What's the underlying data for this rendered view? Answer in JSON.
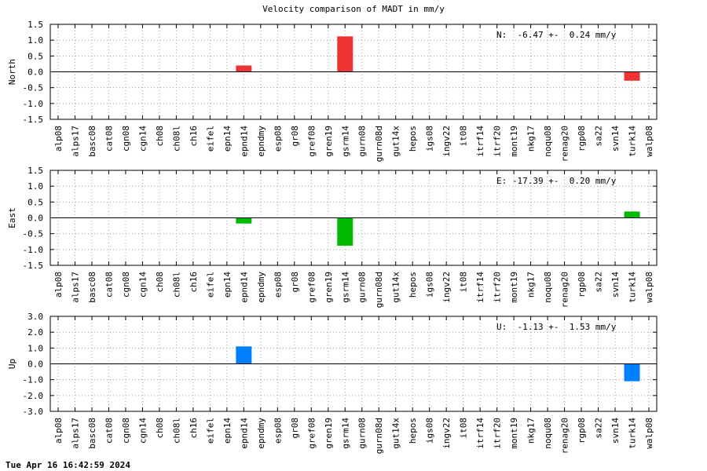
{
  "title": "Velocity comparison of MADT in mm/y",
  "footer_timestamp": "Tue Apr 16 16:42:59 2024",
  "chart_data": [
    {
      "type": "bar",
      "ylabel": "North",
      "annotation": "N:  -6.47 +-  0.24 mm/y",
      "color": "#ee3333",
      "ylim": [
        -1.5,
        1.5
      ],
      "yticks": [
        "1.5",
        "1.0",
        "0.5",
        "0.0",
        "-0.5",
        "-1.0",
        "-1.5"
      ],
      "ytick_values": [
        1.5,
        1.0,
        0.5,
        0.0,
        -0.5,
        -1.0,
        -1.5
      ],
      "categories": [
        "alp08",
        "alps17",
        "basc08",
        "cat08",
        "cgn08",
        "cgn14",
        "ch08",
        "ch08l",
        "ch16",
        "eifel",
        "epn14",
        "epnd14",
        "epndmy",
        "esp08",
        "gr08",
        "gref08",
        "gren19",
        "gsrm14",
        "gurn08",
        "gurn08d",
        "gut14x",
        "hepos",
        "igs08",
        "ingv22",
        "it08",
        "itrf14",
        "itrf20",
        "mont19",
        "nkg17",
        "noqu08",
        "renag20",
        "rgp08",
        "sa22",
        "svn14",
        "turk14",
        "walp08"
      ],
      "values": [
        0,
        0,
        0,
        0,
        0,
        0,
        0,
        0,
        0,
        0,
        0,
        0.2,
        0,
        0,
        0,
        0,
        0,
        1.12,
        0,
        0,
        0,
        0,
        0,
        0,
        0,
        0,
        0,
        0,
        0,
        0,
        0,
        0,
        0,
        0,
        -0.28,
        0
      ]
    },
    {
      "type": "bar",
      "ylabel": "East",
      "annotation": "E: -17.39 +-  0.20 mm/y",
      "color": "#00bb00",
      "ylim": [
        -1.5,
        1.5
      ],
      "yticks": [
        "1.5",
        "1.0",
        "0.5",
        "0.0",
        "-0.5",
        "-1.0",
        "-1.5"
      ],
      "ytick_values": [
        1.5,
        1.0,
        0.5,
        0.0,
        -0.5,
        -1.0,
        -1.5
      ],
      "categories": [
        "alp08",
        "alps17",
        "basc08",
        "cat08",
        "cgn08",
        "cgn14",
        "ch08",
        "ch08l",
        "ch16",
        "eifel",
        "epn14",
        "epnd14",
        "epndmy",
        "esp08",
        "gr08",
        "gref08",
        "gren19",
        "gsrm14",
        "gurn08",
        "gurn08d",
        "gut14x",
        "hepos",
        "igs08",
        "ingv22",
        "it08",
        "itrf14",
        "itrf20",
        "mont19",
        "nkg17",
        "noqu08",
        "renag20",
        "rgp08",
        "sa22",
        "svn14",
        "turk14",
        "walp08"
      ],
      "values": [
        0,
        0,
        0,
        0,
        0,
        0,
        0,
        0,
        0,
        0,
        0,
        -0.18,
        0,
        0,
        0,
        0,
        0,
        -0.88,
        0,
        0,
        0,
        0,
        0,
        0,
        0,
        0,
        0,
        0,
        0,
        0,
        0,
        0,
        0,
        0,
        0.2,
        0
      ]
    },
    {
      "type": "bar",
      "ylabel": "Up",
      "annotation": "U:  -1.13 +-  1.53 mm/y",
      "color": "#0080ff",
      "ylim": [
        -3.0,
        3.0
      ],
      "yticks": [
        "3.0",
        "2.0",
        "1.0",
        "0.0",
        "-1.0",
        "-2.0",
        "-3.0"
      ],
      "ytick_values": [
        3.0,
        2.0,
        1.0,
        0.0,
        -1.0,
        -2.0,
        -3.0
      ],
      "categories": [
        "alp08",
        "alps17",
        "basc08",
        "cat08",
        "cgn08",
        "cgn14",
        "ch08",
        "ch08l",
        "ch16",
        "eifel",
        "epn14",
        "epnd14",
        "epndmy",
        "esp08",
        "gr08",
        "gref08",
        "gren19",
        "gsrm14",
        "gurn08",
        "gurn08d",
        "gut14x",
        "hepos",
        "igs08",
        "ingv22",
        "it08",
        "itrf14",
        "itrf20",
        "mont19",
        "nkg17",
        "noqu08",
        "renag20",
        "rgp08",
        "sa22",
        "svn14",
        "turk14",
        "walp08"
      ],
      "values": [
        0,
        0,
        0,
        0,
        0,
        0,
        0,
        0,
        0,
        0,
        0,
        1.1,
        0,
        0,
        0,
        0,
        0,
        0,
        0,
        0,
        0,
        0,
        0,
        0,
        0,
        0,
        0,
        0,
        0,
        0,
        0,
        0,
        0,
        0,
        -1.1,
        0
      ]
    }
  ]
}
